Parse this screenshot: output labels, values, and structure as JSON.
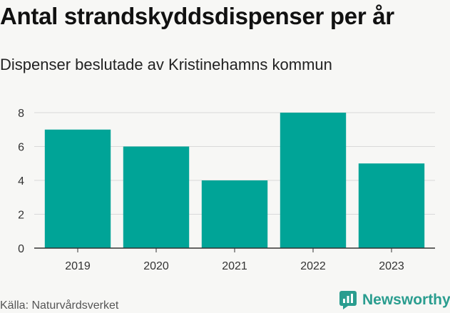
{
  "header": {
    "title": "Antal strandskyddsdispenser per år",
    "subtitle": "Dispenser beslutade av Kristinehamns kommun"
  },
  "footer": {
    "source": "Källa: Naturvårdsverket",
    "brand": "Newsworthy",
    "brand_icon": "newsworthy-logo-icon"
  },
  "colors": {
    "bar": "#00a497",
    "grid": "#d9d9d9",
    "axis": "#333333",
    "brand": "#2a9d8f"
  },
  "chart_data": {
    "type": "bar",
    "title": "Antal strandskyddsdispenser per år",
    "subtitle": "Dispenser beslutade av Kristinehamns kommun",
    "categories": [
      "2019",
      "2020",
      "2021",
      "2022",
      "2023"
    ],
    "values": [
      7,
      6,
      4,
      8,
      5
    ],
    "xlabel": "",
    "ylabel": "",
    "ylim": [
      0,
      8
    ],
    "yticks": [
      "0",
      "2",
      "4",
      "6",
      "8"
    ],
    "grid": true,
    "legend": "none"
  }
}
